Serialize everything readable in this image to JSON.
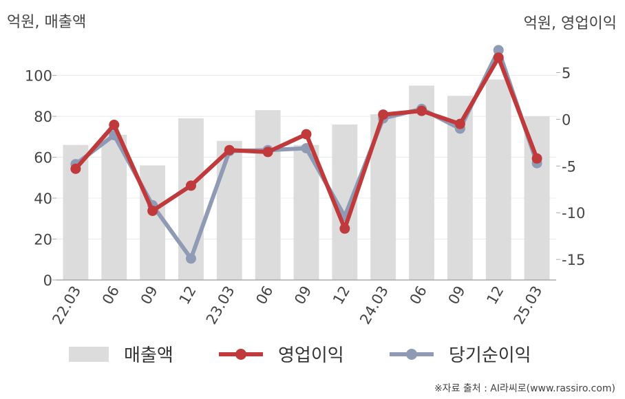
{
  "units": {
    "left": "억원, 매출액",
    "right": "억원, 영업이익"
  },
  "legend": {
    "revenue": "매출액",
    "operating_profit": "영업이익",
    "net_income": "당기순이익"
  },
  "source": "※자료 출처 : AI라씨로(www.rassiro.com)",
  "colors": {
    "revenue": "#dcdcdc",
    "operating_profit": "#c0393b",
    "net_income": "#8f9bb5",
    "axis": "#aaaaaa",
    "grid": "#e8e8e8",
    "tick_text": "#444444"
  },
  "chart_data": {
    "type": "bar",
    "categories": [
      "22.03",
      "06",
      "09",
      "12",
      "23.03",
      "06",
      "09",
      "12",
      "24.03",
      "06",
      "09",
      "12",
      "25.03"
    ],
    "series": [
      {
        "name": "매출액",
        "type": "bar",
        "axis": "left",
        "values": [
          66,
          71,
          56,
          79,
          68,
          83,
          66,
          76,
          81,
          95,
          90,
          98,
          80
        ]
      },
      {
        "name": "영업이익",
        "type": "line",
        "axis": "right",
        "values": [
          -5.3,
          -0.6,
          -9.8,
          -7.1,
          -3.3,
          -3.5,
          -1.6,
          -11.7,
          0.5,
          0.9,
          -0.5,
          6.6,
          -4.2
        ]
      },
      {
        "name": "당기순이익",
        "type": "line",
        "axis": "right",
        "values": [
          -4.8,
          -1.7,
          -9.2,
          -14.9,
          -3.4,
          -3.3,
          -3.1,
          -10.4,
          0.1,
          1.1,
          -1.0,
          7.4,
          -4.7
        ]
      }
    ],
    "y_left": {
      "ticks": [
        0,
        20,
        40,
        60,
        80,
        100
      ],
      "ylim": [
        0,
        116
      ]
    },
    "y_right": {
      "ticks": [
        5,
        0,
        -5,
        -10,
        -15
      ],
      "ylim": [
        -17.2,
        8.2
      ]
    },
    "grid": true,
    "legend_position": "bottom"
  }
}
